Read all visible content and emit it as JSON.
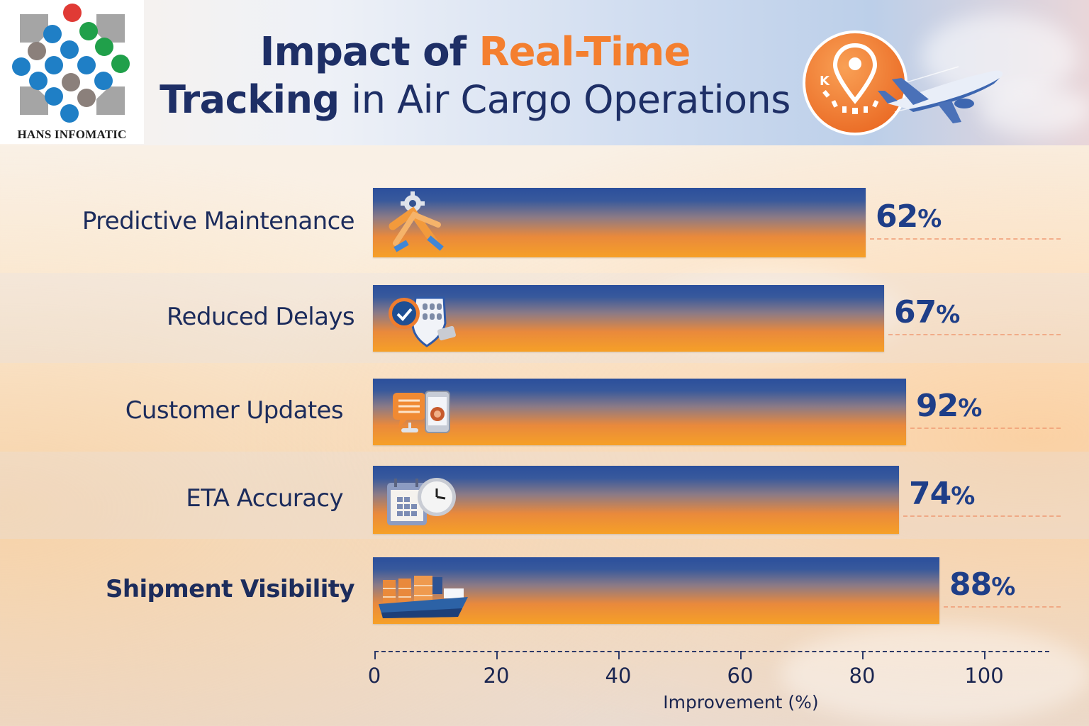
{
  "logo": {
    "brand": "HANS INFOMATIC",
    "icon": "dot-diamond-logo-icon"
  },
  "header": {
    "title_line1_a": "Impact of ",
    "title_line1_b": "Real-Time",
    "title_line2_a": "Tracking",
    "title_line2_b": " in Air Cargo Operations",
    "badge_icon": "location-pin-icon",
    "plane_icon": "airplane-icon",
    "accent_color": "#f47f2f",
    "text_color": "#1e2f66"
  },
  "chart_data": {
    "type": "bar",
    "orientation": "horizontal",
    "title": "Impact of Real-Time Tracking in Air Cargo Operations",
    "xlabel": "Improvement (%)",
    "ylabel": "",
    "xlim": [
      0,
      110
    ],
    "xticks": [
      0,
      20,
      40,
      60,
      80,
      100
    ],
    "grid": false,
    "legend": "none",
    "categories": [
      "Predictive Maintenance",
      "Reduced Delays",
      "Customer Updates",
      "ETA Accuracy",
      "Shipment Visibility"
    ],
    "values": [
      62,
      67,
      92,
      74,
      88
    ],
    "value_labels": [
      "62%",
      "67%",
      "92%",
      "74%",
      "88%"
    ],
    "category_icons": [
      "tools-gear-icon",
      "checklist-shield-icon",
      "chat-phone-icon",
      "calendar-clock-icon",
      "cargo-ship-icon"
    ],
    "bar_gradient": [
      "#2b4f9c",
      "#f6a027"
    ]
  }
}
